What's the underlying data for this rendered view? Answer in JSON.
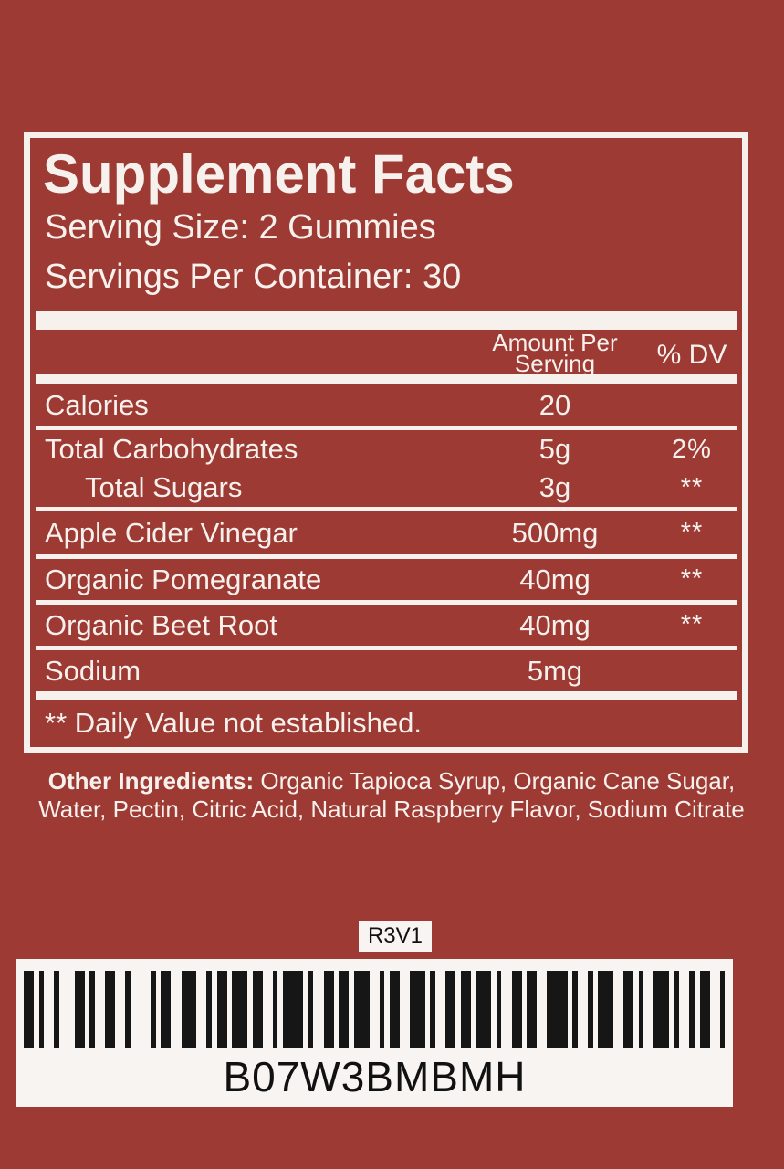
{
  "colors": {
    "background": "#9d3a33",
    "panel_line": "#f7f1ee",
    "barcode_bg": "#f7f4f2",
    "barcode_ink": "#161616"
  },
  "panel": {
    "title": "Supplement Facts",
    "serving_size": "Serving Size: 2 Gummies",
    "servings_per_container": "Servings Per Container: 30",
    "header": {
      "amount_line1": "Amount Per",
      "amount_line2": "Serving",
      "dv": "% DV"
    },
    "rows": [
      {
        "name": "Calories",
        "amount": "20",
        "dv": ""
      },
      {
        "name": "Total Carbohydrates",
        "amount": "5g",
        "dv": "2%"
      },
      {
        "name": "Total Sugars",
        "amount": "3g",
        "dv": "**"
      },
      {
        "name": "Apple Cider Vinegar",
        "amount": "500mg",
        "dv": "**"
      },
      {
        "name": "Organic Pomegranate",
        "amount": "40mg",
        "dv": "**"
      },
      {
        "name": "Organic Beet Root",
        "amount": "40mg",
        "dv": "**"
      },
      {
        "name": "Sodium",
        "amount": "5mg",
        "dv": ""
      }
    ],
    "footnote": "** Daily Value not established."
  },
  "other_ingredients": {
    "label": "Other Ingredients:",
    "line1_rest": " Organic Tapioca Syrup, Organic Cane Sugar,",
    "line2": "Water, Pectin, Citric Acid, Natural Raspberry Flavor, Sodium Citrate"
  },
  "revision_code": "R3V1",
  "barcode": {
    "text": "B07W3BMBMH",
    "pattern": "211213211222141122321121312211411221213211223112212131122122411211322112311211221"
  }
}
